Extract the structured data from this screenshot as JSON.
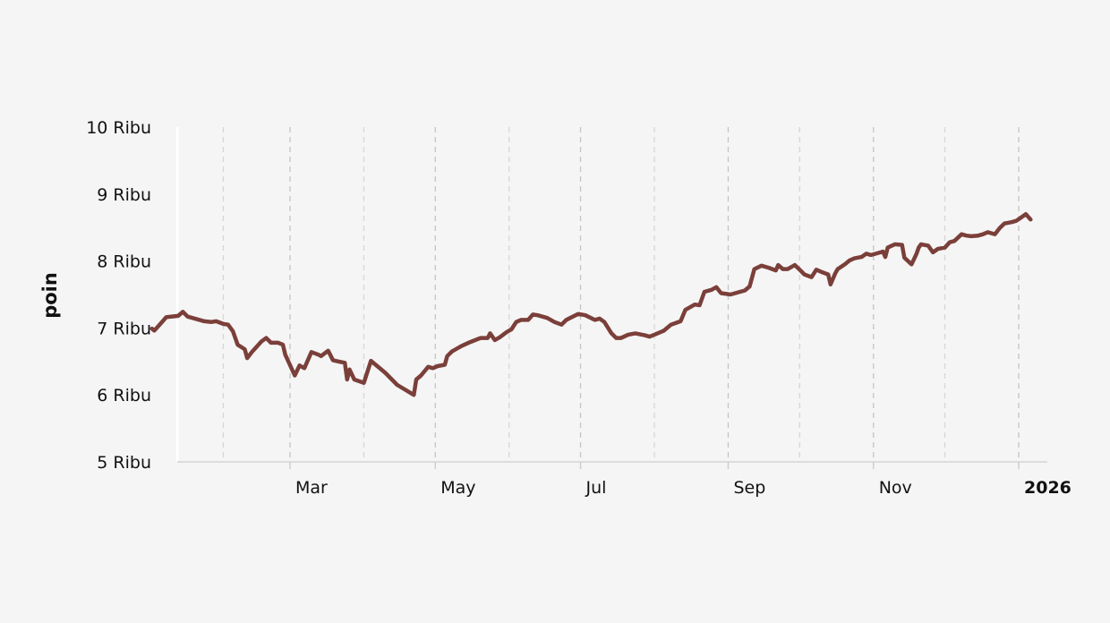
{
  "chart_data": {
    "type": "line",
    "title": "",
    "xlabel": "",
    "ylabel": "poin",
    "x_domain": [
      "2025-01-01",
      "2026-01-06"
    ],
    "ylim": [
      5000,
      10000
    ],
    "y_ticks": [
      {
        "value": 5000,
        "label": "5 Ribu"
      },
      {
        "value": 6000,
        "label": "6 Ribu"
      },
      {
        "value": 7000,
        "label": "7 Ribu"
      },
      {
        "value": 8000,
        "label": "8 Ribu"
      },
      {
        "value": 9000,
        "label": "9 Ribu"
      },
      {
        "value": 10000,
        "label": "10 Ribu"
      }
    ],
    "x_ticks": [
      {
        "date": "2025-03-01",
        "label": "Mar",
        "bold": false
      },
      {
        "date": "2025-05-01",
        "label": "May",
        "bold": false
      },
      {
        "date": "2025-07-01",
        "label": "Jul",
        "bold": false
      },
      {
        "date": "2025-09-01",
        "label": "Sep",
        "bold": false
      },
      {
        "date": "2025-11-01",
        "label": "Nov",
        "bold": false
      },
      {
        "date": "2026-01-01",
        "label": "2026",
        "bold": true
      }
    ],
    "minor_grid_dates": [
      "2025-02-01",
      "2025-04-01",
      "2025-06-01",
      "2025-08-01",
      "2025-10-01",
      "2025-12-01"
    ],
    "grid": "vertical-dashed",
    "line_color": "#7b3f3a",
    "series": [
      {
        "name": "",
        "points": [
          [
            "2025-01-02",
            6990
          ],
          [
            "2025-01-03",
            6960
          ],
          [
            "2025-01-06",
            7080
          ],
          [
            "2025-01-08",
            7160
          ],
          [
            "2025-01-10",
            7170
          ],
          [
            "2025-01-13",
            7180
          ],
          [
            "2025-01-15",
            7240
          ],
          [
            "2025-01-17",
            7170
          ],
          [
            "2025-01-21",
            7130
          ],
          [
            "2025-01-24",
            7100
          ],
          [
            "2025-01-27",
            7090
          ],
          [
            "2025-01-29",
            7100
          ],
          [
            "2025-02-01",
            7060
          ],
          [
            "2025-02-03",
            7050
          ],
          [
            "2025-02-05",
            6950
          ],
          [
            "2025-02-07",
            6750
          ],
          [
            "2025-02-10",
            6680
          ],
          [
            "2025-02-11",
            6550
          ],
          [
            "2025-02-13",
            6640
          ],
          [
            "2025-02-17",
            6800
          ],
          [
            "2025-02-19",
            6850
          ],
          [
            "2025-02-21",
            6780
          ],
          [
            "2025-02-24",
            6780
          ],
          [
            "2025-02-26",
            6750
          ],
          [
            "2025-02-27",
            6600
          ],
          [
            "2025-03-03",
            6290
          ],
          [
            "2025-03-05",
            6440
          ],
          [
            "2025-03-07",
            6400
          ],
          [
            "2025-03-10",
            6640
          ],
          [
            "2025-03-13",
            6600
          ],
          [
            "2025-03-14",
            6580
          ],
          [
            "2025-03-17",
            6660
          ],
          [
            "2025-03-19",
            6520
          ],
          [
            "2025-03-20",
            6510
          ],
          [
            "2025-03-24",
            6480
          ],
          [
            "2025-03-25",
            6230
          ],
          [
            "2025-03-26",
            6380
          ],
          [
            "2025-03-28",
            6230
          ],
          [
            "2025-04-01",
            6180
          ],
          [
            "2025-04-04",
            6510
          ],
          [
            "2025-04-10",
            6330
          ],
          [
            "2025-04-15",
            6150
          ],
          [
            "2025-04-22",
            6000
          ],
          [
            "2025-04-23",
            6230
          ],
          [
            "2025-04-25",
            6290
          ],
          [
            "2025-04-28",
            6420
          ],
          [
            "2025-04-30",
            6400
          ],
          [
            "2025-05-02",
            6430
          ],
          [
            "2025-05-05",
            6450
          ],
          [
            "2025-05-06",
            6580
          ],
          [
            "2025-05-08",
            6650
          ],
          [
            "2025-05-12",
            6730
          ],
          [
            "2025-05-15",
            6780
          ],
          [
            "2025-05-20",
            6850
          ],
          [
            "2025-05-23",
            6850
          ],
          [
            "2025-05-24",
            6920
          ],
          [
            "2025-05-26",
            6820
          ],
          [
            "2025-05-28",
            6860
          ],
          [
            "2025-05-31",
            6940
          ],
          [
            "2025-06-02",
            6980
          ],
          [
            "2025-06-04",
            7090
          ],
          [
            "2025-06-06",
            7120
          ],
          [
            "2025-06-09",
            7120
          ],
          [
            "2025-06-11",
            7200
          ],
          [
            "2025-06-13",
            7190
          ],
          [
            "2025-06-17",
            7150
          ],
          [
            "2025-06-20",
            7090
          ],
          [
            "2025-06-23",
            7050
          ],
          [
            "2025-06-25",
            7120
          ],
          [
            "2025-06-30",
            7210
          ],
          [
            "2025-07-03",
            7190
          ],
          [
            "2025-07-07",
            7120
          ],
          [
            "2025-07-09",
            7140
          ],
          [
            "2025-07-11",
            7090
          ],
          [
            "2025-07-14",
            6920
          ],
          [
            "2025-07-16",
            6850
          ],
          [
            "2025-07-18",
            6850
          ],
          [
            "2025-07-21",
            6900
          ],
          [
            "2025-07-24",
            6920
          ],
          [
            "2025-07-28",
            6890
          ],
          [
            "2025-07-30",
            6870
          ],
          [
            "2025-08-01",
            6900
          ],
          [
            "2025-08-05",
            6960
          ],
          [
            "2025-08-08",
            7050
          ],
          [
            "2025-08-12",
            7100
          ],
          [
            "2025-08-14",
            7270
          ],
          [
            "2025-08-18",
            7350
          ],
          [
            "2025-08-20",
            7340
          ],
          [
            "2025-08-22",
            7540
          ],
          [
            "2025-08-25",
            7570
          ],
          [
            "2025-08-27",
            7610
          ],
          [
            "2025-08-29",
            7520
          ],
          [
            "2025-09-02",
            7500
          ],
          [
            "2025-09-04",
            7520
          ],
          [
            "2025-09-08",
            7560
          ],
          [
            "2025-09-10",
            7620
          ],
          [
            "2025-09-12",
            7880
          ],
          [
            "2025-09-15",
            7930
          ],
          [
            "2025-09-18",
            7900
          ],
          [
            "2025-09-21",
            7860
          ],
          [
            "2025-09-22",
            7940
          ],
          [
            "2025-09-24",
            7880
          ],
          [
            "2025-09-26",
            7880
          ],
          [
            "2025-09-29",
            7940
          ],
          [
            "2025-10-01",
            7870
          ],
          [
            "2025-10-03",
            7800
          ],
          [
            "2025-10-06",
            7760
          ],
          [
            "2025-10-08",
            7870
          ],
          [
            "2025-10-10",
            7840
          ],
          [
            "2025-10-13",
            7800
          ],
          [
            "2025-10-14",
            7650
          ],
          [
            "2025-10-16",
            7820
          ],
          [
            "2025-10-17",
            7880
          ],
          [
            "2025-10-20",
            7950
          ],
          [
            "2025-10-22",
            8010
          ],
          [
            "2025-10-24",
            8040
          ],
          [
            "2025-10-27",
            8060
          ],
          [
            "2025-10-29",
            8110
          ],
          [
            "2025-10-31",
            8090
          ],
          [
            "2025-11-03",
            8120
          ],
          [
            "2025-11-05",
            8140
          ],
          [
            "2025-11-06",
            8060
          ],
          [
            "2025-11-07",
            8200
          ],
          [
            "2025-11-10",
            8250
          ],
          [
            "2025-11-13",
            8240
          ],
          [
            "2025-11-14",
            8050
          ],
          [
            "2025-11-17",
            7950
          ],
          [
            "2025-11-19",
            8100
          ],
          [
            "2025-11-20",
            8200
          ],
          [
            "2025-11-21",
            8250
          ],
          [
            "2025-11-24",
            8230
          ],
          [
            "2025-11-26",
            8130
          ],
          [
            "2025-11-28",
            8180
          ],
          [
            "2025-12-01",
            8200
          ],
          [
            "2025-12-03",
            8280
          ],
          [
            "2025-12-05",
            8300
          ],
          [
            "2025-12-08",
            8400
          ],
          [
            "2025-12-10",
            8380
          ],
          [
            "2025-12-12",
            8370
          ],
          [
            "2025-12-15",
            8380
          ],
          [
            "2025-12-17",
            8400
          ],
          [
            "2025-12-19",
            8430
          ],
          [
            "2025-12-22",
            8400
          ],
          [
            "2025-12-24",
            8490
          ],
          [
            "2025-12-26",
            8560
          ],
          [
            "2025-12-29",
            8580
          ],
          [
            "2025-12-31",
            8600
          ],
          [
            "2026-01-02",
            8650
          ],
          [
            "2026-01-04",
            8700
          ],
          [
            "2026-01-05",
            8660
          ],
          [
            "2026-01-06",
            8620
          ]
        ]
      }
    ]
  }
}
